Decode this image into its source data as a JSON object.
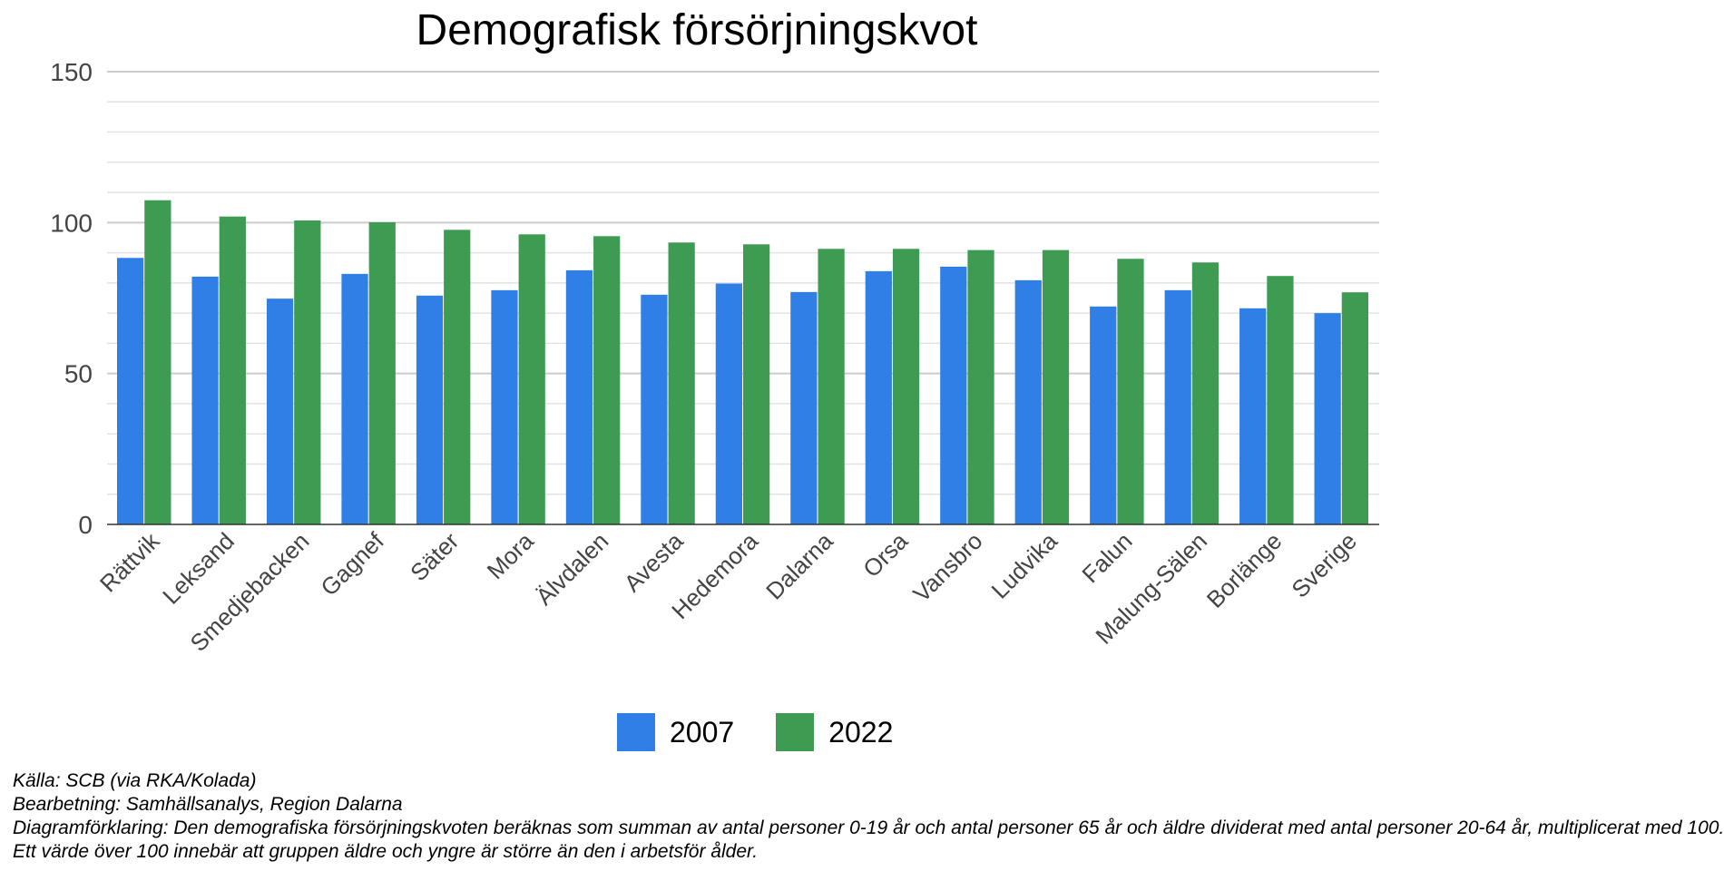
{
  "chart_data": {
    "type": "bar",
    "title": "Demografisk försörjningskvot",
    "xlabel": "",
    "ylabel": "",
    "ylim": [
      0,
      150
    ],
    "yticks": [
      "0",
      "50",
      "100",
      "150"
    ],
    "grid": true,
    "legend_position": "bottom",
    "categories": [
      "Rättvik",
      "Leksand",
      "Smedjebacken",
      "Gagnef",
      "Säter",
      "Mora",
      "Älvdalen",
      "Avesta",
      "Hedemora",
      "Dalarna",
      "Orsa",
      "Vansbro",
      "Ludvika",
      "Falun",
      "Malung-Sälen",
      "Borlänge",
      "Sverige"
    ],
    "series": [
      {
        "name": "2007",
        "color": "#2f7fe6",
        "values": [
          88.3,
          82.1,
          74.8,
          83.0,
          75.8,
          77.6,
          84.2,
          76.1,
          79.8,
          77.0,
          83.9,
          85.4,
          80.9,
          72.2,
          77.6,
          71.6,
          70.0
        ]
      },
      {
        "name": "2022",
        "color": "#3d9b52",
        "values": [
          107.4,
          102.0,
          100.7,
          100.1,
          97.6,
          96.1,
          95.5,
          93.4,
          92.8,
          91.3,
          91.3,
          90.9,
          90.9,
          88.0,
          86.8,
          82.3,
          76.9
        ]
      }
    ]
  },
  "notes": {
    "source": "Källa: SCB (via RKA/Kolada)",
    "processing": "Bearbetning: Samhällsanalys, Region Dalarna",
    "explanation": "Diagramförklaring: Den demografiska försörjningskvoten beräknas som summan av antal personer 0-19 år och antal personer 65 år och äldre dividerat med antal personer 20-64 år, multiplicerat med 100.",
    "interpretation": "Ett värde över 100 innebär att gruppen äldre och yngre är större än den i arbetsför ålder."
  }
}
